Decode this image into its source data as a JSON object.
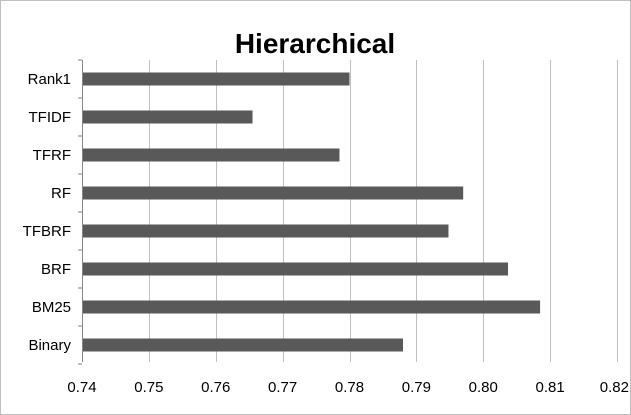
{
  "chart_data": {
    "type": "bar",
    "orientation": "horizontal",
    "title": "Hierarchical",
    "xlabel": "",
    "ylabel": "",
    "categories": [
      "Rank1",
      "TFIDF",
      "TFRF",
      "RF",
      "TFBRF",
      "BRF",
      "BM25",
      "Binary"
    ],
    "values": [
      0.78,
      0.7655,
      0.7785,
      0.797,
      0.7948,
      0.8037,
      0.8085,
      0.788
    ],
    "xlim": [
      0.74,
      0.82
    ],
    "x_ticks": [
      "0.74",
      "0.75",
      "0.76",
      "0.77",
      "0.78",
      "0.79",
      "0.80",
      "0.81",
      "0.82"
    ],
    "grid": "vertical",
    "legend": "none",
    "bar_color": "#595959",
    "grid_color": "#bfbfbf",
    "axis_color": "#868686"
  }
}
